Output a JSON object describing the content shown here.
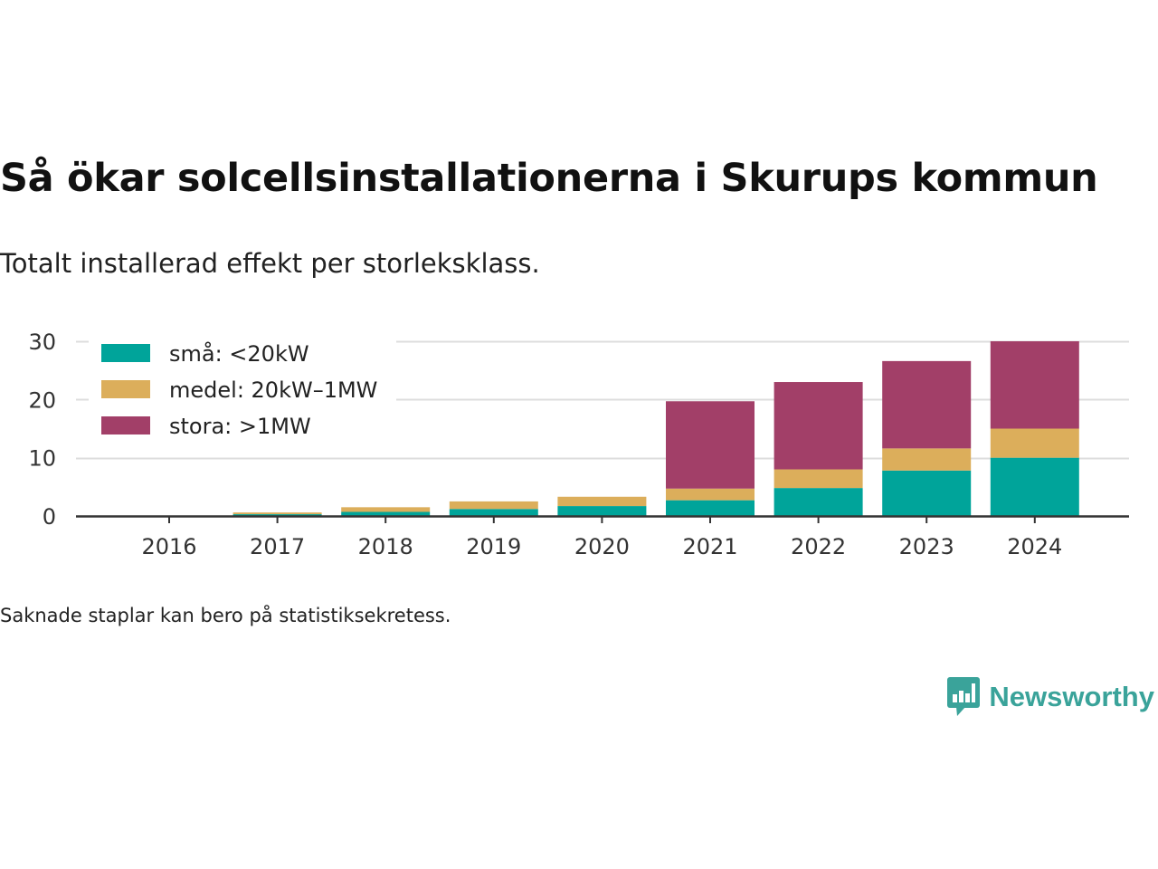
{
  "title": "Så ökar solcellsinstallationerna i Skurups kommun",
  "subtitle": "Totalt installerad effekt per storleksklass.",
  "footnote": "Saknade staplar kan bero på statistiksekretess.",
  "brand": {
    "name": "Newsworthy",
    "icon": "newsworthy-logo-icon"
  },
  "colors": {
    "sma": "#00a49a",
    "medel": "#dcae5b",
    "stora": "#a23f68",
    "grid": "#dddddd",
    "axis": "#333333"
  },
  "chart_data": {
    "type": "bar",
    "stacked": true,
    "categories": [
      "2016",
      "2017",
      "2018",
      "2019",
      "2020",
      "2021",
      "2022",
      "2023",
      "2024"
    ],
    "series": [
      {
        "name": "små: <20kW",
        "color": "#00a49a",
        "values": [
          0.05,
          0.3,
          0.7,
          1.2,
          1.7,
          2.7,
          4.8,
          7.8,
          10.0
        ]
      },
      {
        "name": "medel: 20kW–1MW",
        "color": "#dcae5b",
        "values": [
          0.0,
          0.3,
          0.8,
          1.3,
          1.6,
          2.0,
          3.2,
          3.8,
          5.0
        ]
      },
      {
        "name": "stora: >1MW",
        "color": "#a23f68",
        "values": [
          0.0,
          0.0,
          0.0,
          0.0,
          0.0,
          15.0,
          15.0,
          15.0,
          15.0
        ]
      }
    ],
    "yticks": [
      0,
      10,
      20,
      30
    ],
    "ylim": [
      0,
      30
    ],
    "grid": true,
    "legend": "top-left"
  }
}
